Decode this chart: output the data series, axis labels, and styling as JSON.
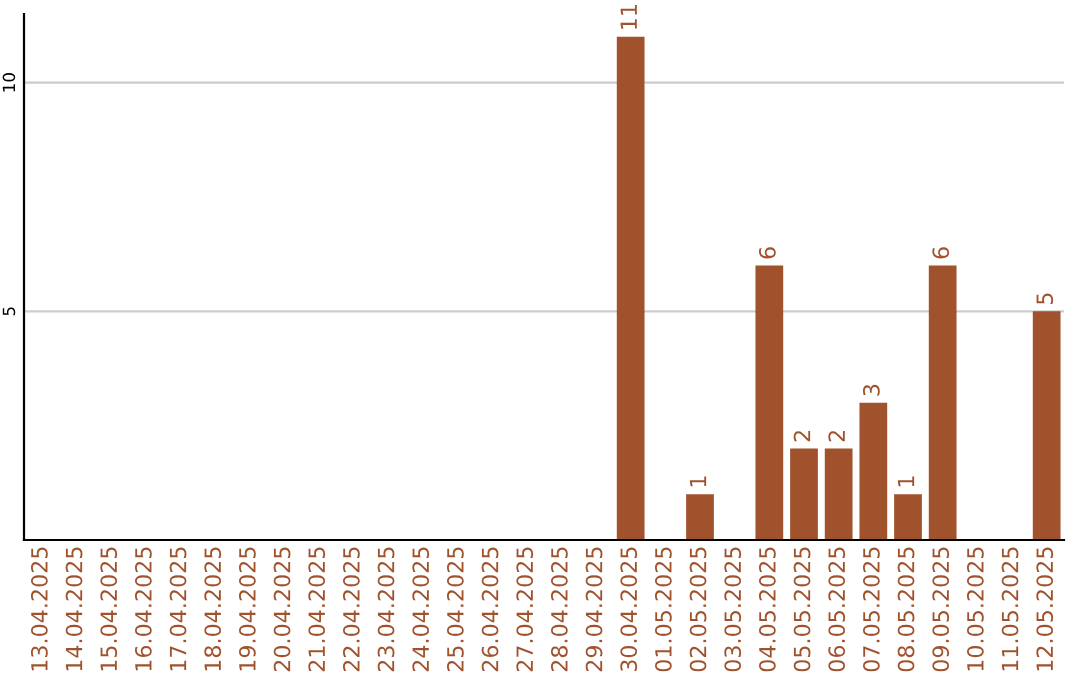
{
  "chart_data": {
    "type": "bar",
    "categories": [
      "13.04.2025",
      "14.04.2025",
      "15.04.2025",
      "16.04.2025",
      "17.04.2025",
      "18.04.2025",
      "19.04.2025",
      "20.04.2025",
      "21.04.2025",
      "22.04.2025",
      "23.04.2025",
      "24.04.2025",
      "25.04.2025",
      "26.04.2025",
      "27.04.2025",
      "28.04.2025",
      "29.04.2025",
      "30.04.2025",
      "01.05.2025",
      "02.05.2025",
      "03.05.2025",
      "04.05.2025",
      "05.05.2025",
      "06.05.2025",
      "07.05.2025",
      "08.05.2025",
      "09.05.2025",
      "10.05.2025",
      "11.05.2025",
      "12.05.2025"
    ],
    "values": [
      0,
      0,
      0,
      0,
      0,
      0,
      0,
      0,
      0,
      0,
      0,
      0,
      0,
      0,
      0,
      0,
      0,
      11,
      0,
      1,
      0,
      6,
      2,
      2,
      3,
      1,
      6,
      0,
      0,
      5
    ],
    "value_labels": [
      null,
      null,
      null,
      null,
      null,
      null,
      null,
      null,
      null,
      null,
      null,
      null,
      null,
      null,
      null,
      null,
      null,
      "11",
      null,
      "1",
      null,
      "6",
      "2",
      "2",
      "3",
      "1",
      "6",
      null,
      null,
      "5"
    ],
    "color": "#a0522d",
    "ylim": [
      0,
      11.5
    ],
    "yticks": [
      5,
      10
    ],
    "grid": "y"
  }
}
